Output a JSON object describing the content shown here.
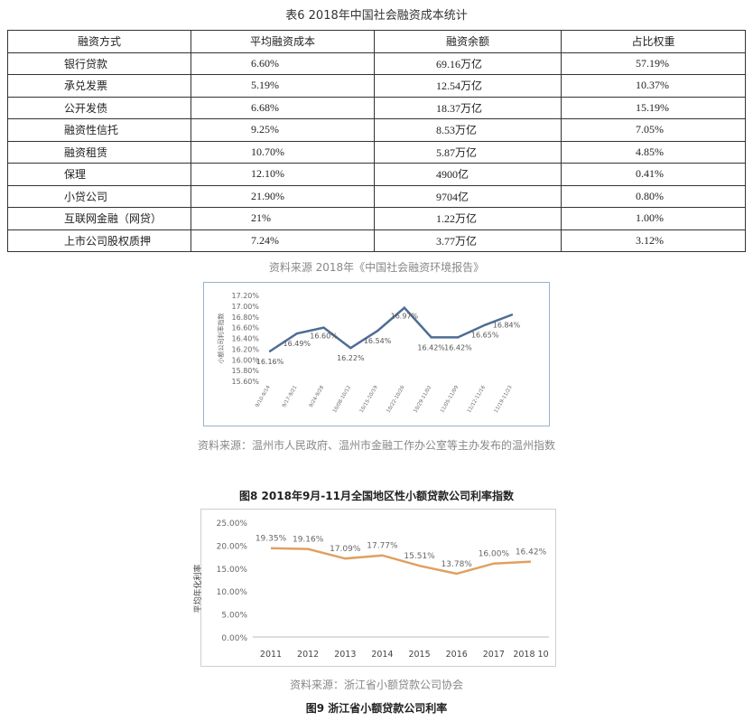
{
  "table6": {
    "title": "表6 2018年中国社会融资成本统计",
    "headers": [
      "融资方式",
      "平均融资成本",
      "融资余额",
      "占比权重"
    ],
    "rows": [
      [
        "银行贷款",
        "6.60%",
        "69.16万亿",
        "57.19%"
      ],
      [
        "承兑发票",
        "5.19%",
        "12.54万亿",
        "10.37%"
      ],
      [
        "公开发债",
        "6.68%",
        "18.37万亿",
        "15.19%"
      ],
      [
        "融资性信托",
        "9.25%",
        "8.53万亿",
        "7.05%"
      ],
      [
        "融资租赁",
        "10.70%",
        "5.87万亿",
        "4.85%"
      ],
      [
        "保理",
        "12.10%",
        "4900亿",
        "0.41%"
      ],
      [
        "小贷公司",
        "21.90%",
        "9704亿",
        "0.80%"
      ],
      [
        "互联网金融（网贷）",
        "21%",
        "1.22万亿",
        "1.00%"
      ],
      [
        "上市公司股权质押",
        "7.24%",
        "3.77万亿",
        "3.12%"
      ]
    ],
    "source": "资料来源   2018年《中国社会融资环境报告》"
  },
  "chart1_source": "资料来源：温州市人民政府、温州市金融工作办公室等主办发布的温州指数",
  "chart2_caption": "图8 2018年9月-11月全国地区性小额贷款公司利率指数",
  "chart2_source": "资料来源：浙江省小额贷款公司协会",
  "chart2_figure_caption": "图9 浙江省小额贷款公司利率",
  "chart_data": [
    {
      "type": "line",
      "title": "",
      "ylabel": "小额公司利率指数",
      "xlabel": "",
      "categories": [
        "9/10-9/14",
        "9/17-9/21",
        "9/24-9/28",
        "10/08-10/12",
        "10/15-10/19",
        "10/22-10/26",
        "10/29-11/02",
        "11/05-11/09",
        "11/12-11/16",
        "11/19-11/23"
      ],
      "values": [
        16.16,
        16.49,
        16.6,
        16.22,
        16.54,
        16.97,
        16.42,
        16.42,
        16.65,
        16.84
      ],
      "data_labels": [
        "16.16%",
        "16.49%",
        "16.60%",
        "16.22%",
        "16.54%",
        "16.97%",
        "16.42%",
        "16.42%",
        "16.65%",
        "16.84%"
      ],
      "ylim": [
        15.6,
        17.2
      ],
      "yticks": [
        "15.60%",
        "15.80%",
        "16.00%",
        "16.20%",
        "16.40%",
        "16.60%",
        "16.80%",
        "17.00%",
        "17.20%"
      ],
      "line_color": "#4f6d95",
      "grid": false
    },
    {
      "type": "line",
      "title": "",
      "ylabel": "平均年化利率",
      "xlabel": "",
      "categories": [
        "2011",
        "2012",
        "2013",
        "2014",
        "2015",
        "2016",
        "2017",
        "2018 10"
      ],
      "values": [
        19.35,
        19.16,
        17.09,
        17.77,
        15.51,
        13.78,
        16.0,
        16.42
      ],
      "data_labels": [
        "19.35%",
        "19.16%",
        "17.09%",
        "17.77%",
        "15.51%",
        "13.78%",
        "16.00%",
        "16.42%"
      ],
      "ylim": [
        0,
        25
      ],
      "yticks": [
        "0.00%",
        "5.00%",
        "10.00%",
        "15.00%",
        "20.00%",
        "25.00%"
      ],
      "line_color": "#e0a060",
      "grid": false
    }
  ]
}
